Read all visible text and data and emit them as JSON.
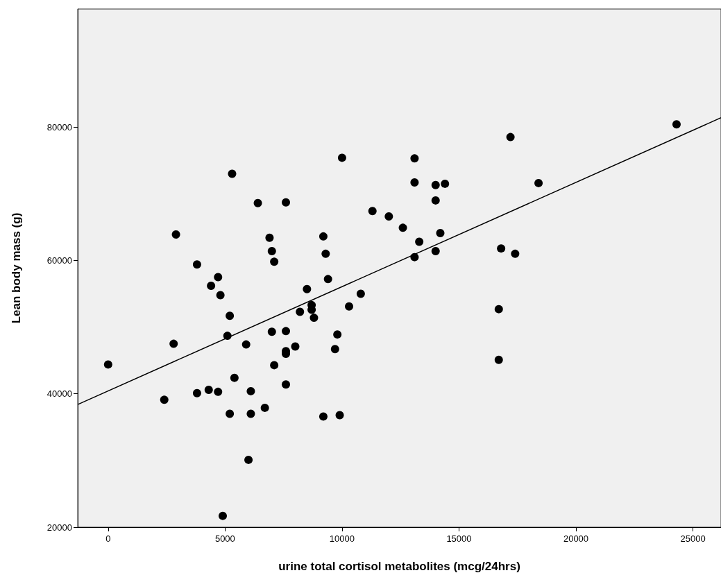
{
  "chart_data": {
    "type": "scatter",
    "xlabel": "urine total cortisol metabolites (mcg/24hrs)",
    "ylabel": "Lean body mass (g)",
    "xlim": [
      -1300,
      26200
    ],
    "xticks": [
      0,
      5000,
      10000,
      15000,
      20000,
      25000
    ],
    "ylim": [
      20000,
      97700
    ],
    "yticks": [
      20000,
      40000,
      60000,
      80000
    ],
    "grid": false,
    "marker": "circle",
    "series": [
      {
        "color": "#000000",
        "x": [
          5300,
          6400,
          7600,
          2900,
          6900,
          7000,
          7100,
          3800,
          4700,
          4400,
          4800,
          5200,
          8500,
          8200,
          8700,
          8700,
          8800,
          5100,
          0,
          2800,
          2400,
          3800,
          4300,
          4700,
          5400,
          5900,
          7000,
          7600,
          8000,
          7600,
          7600,
          7100,
          7600,
          6100,
          5200,
          6100,
          6700,
          6000,
          4900,
          10000,
          13100,
          17200,
          13100,
          14000,
          14400,
          18400,
          14000,
          11300,
          12000,
          12600,
          14200,
          13300,
          14000,
          13100,
          16800,
          17400,
          9200,
          9300,
          9400,
          10800,
          10300,
          16700,
          9800,
          9700,
          16700,
          24300,
          9200,
          9900
        ],
        "values": [
          73000,
          68600,
          68700,
          63900,
          63400,
          61400,
          59800,
          59400,
          57500,
          56200,
          54800,
          51700,
          55700,
          52300,
          53300,
          52600,
          51400,
          48700,
          44400,
          47500,
          39100,
          40100,
          40600,
          40300,
          42400,
          47400,
          49300,
          49400,
          47100,
          46400,
          46000,
          44300,
          41400,
          40400,
          37000,
          37000,
          37900,
          30100,
          21700,
          75400,
          75300,
          78500,
          71700,
          71300,
          71500,
          71600,
          69000,
          67400,
          66600,
          64900,
          64100,
          62800,
          61400,
          60500,
          61800,
          61000,
          63600,
          61000,
          57200,
          55000,
          53100,
          52700,
          48900,
          46700,
          45100,
          80400,
          36600,
          36800
        ]
      },
      {
        "type": "line",
        "color": "#000000",
        "marker": "none",
        "line_style": "solid",
        "x": [
          -1300,
          26200
        ],
        "values": [
          38400,
          81400
        ]
      }
    ]
  }
}
